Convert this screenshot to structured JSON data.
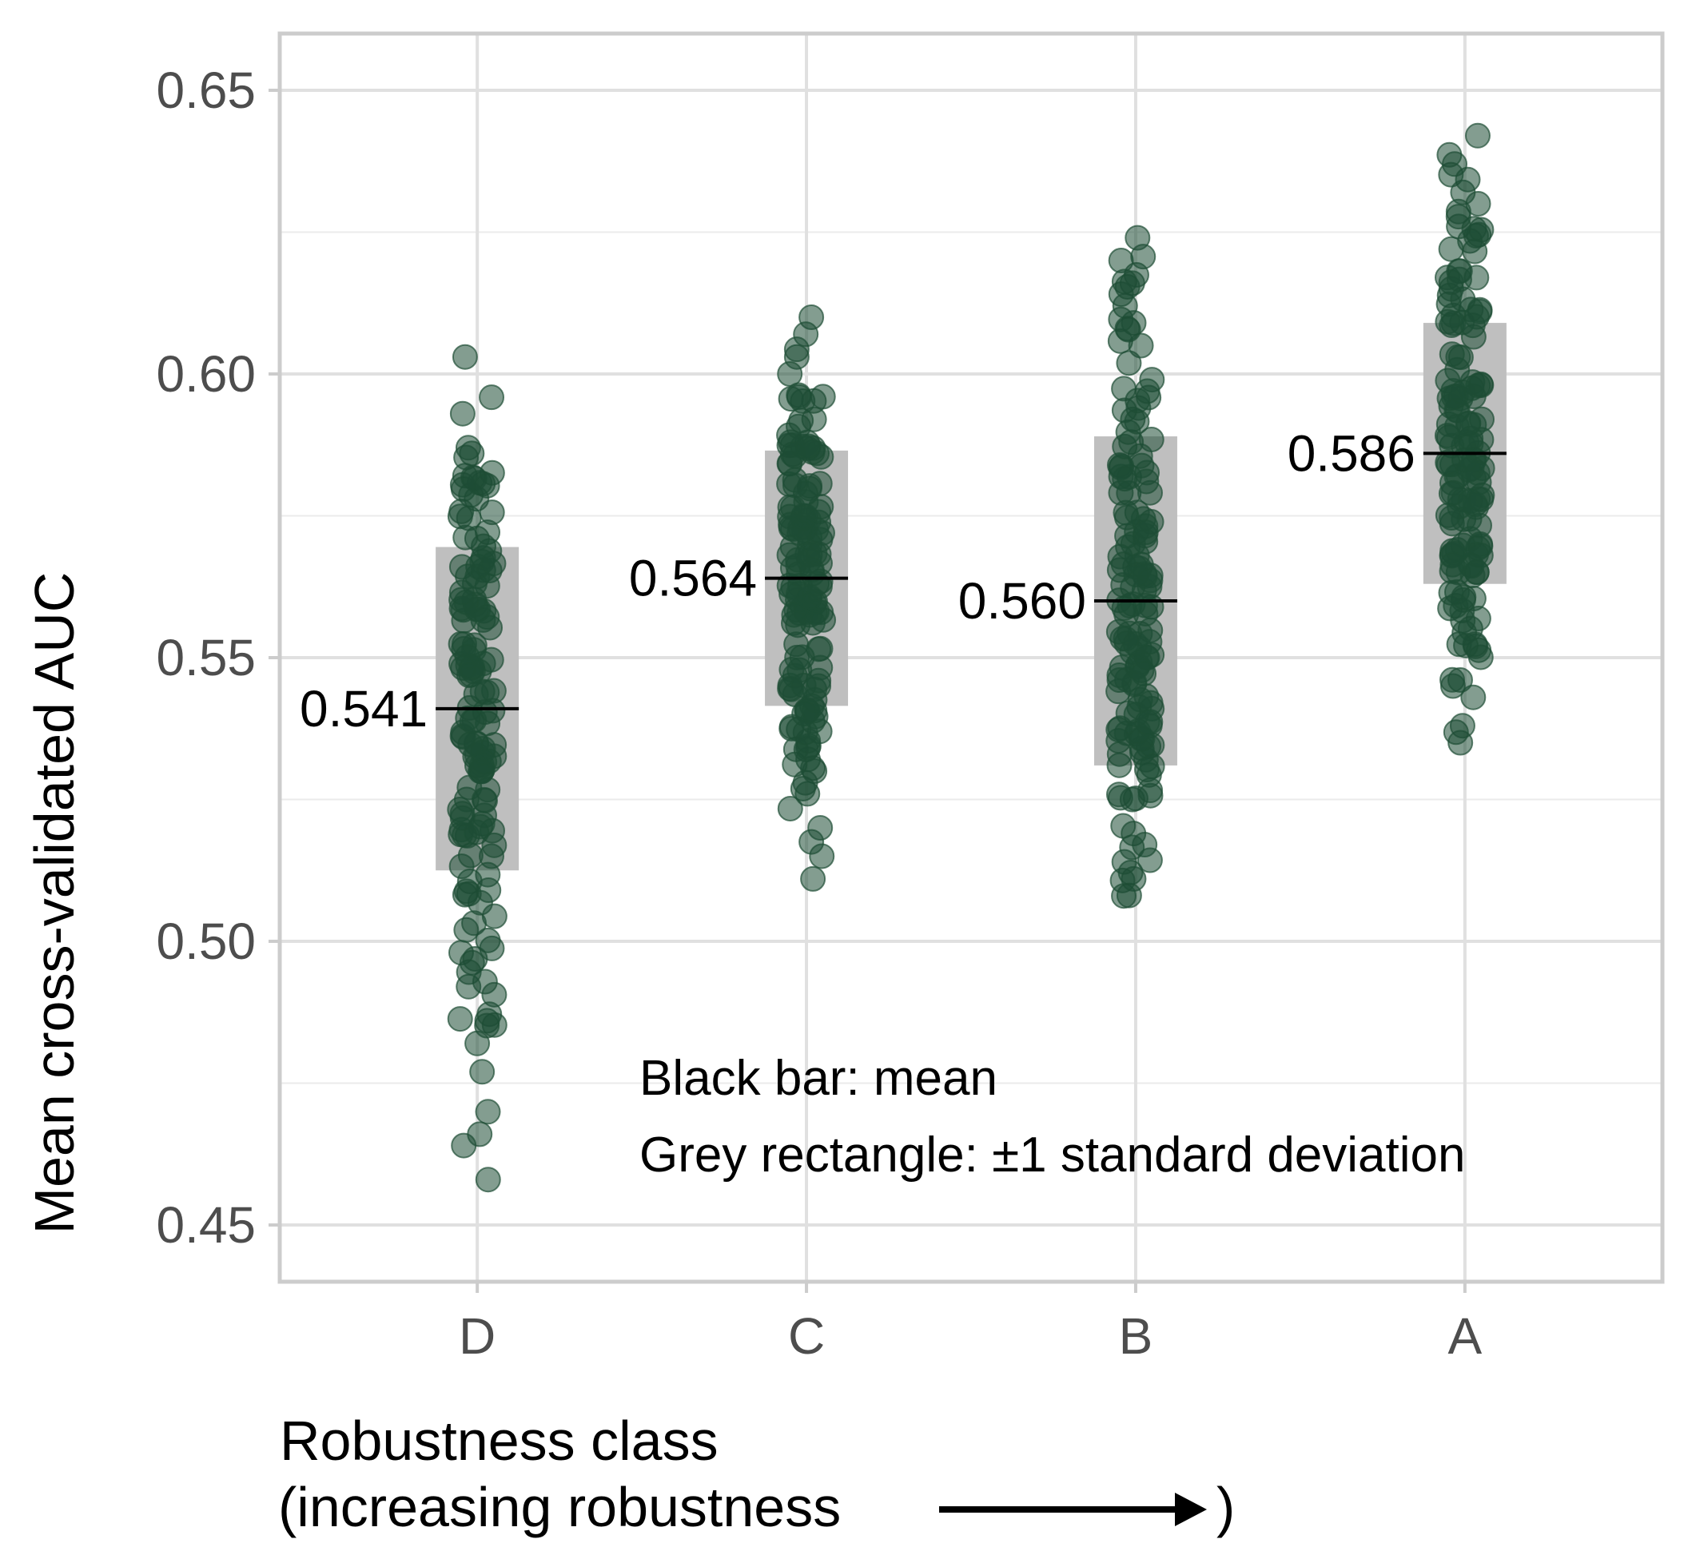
{
  "chart_data": {
    "type": "scatter",
    "title": "",
    "xlabel_lines": [
      "Robustness class",
      "(increasing robustness"
    ],
    "xlabel_close": ")",
    "ylabel": "Mean cross-validated AUC",
    "ylim": [
      0.44,
      0.66
    ],
    "y_ticks": [
      0.45,
      0.5,
      0.55,
      0.6,
      0.65
    ],
    "y_tick_labels": [
      "0.45",
      "0.50",
      "0.55",
      "0.60",
      "0.65"
    ],
    "categories": [
      "D",
      "C",
      "B",
      "A"
    ],
    "grid": true,
    "point_color": "#1e4d34",
    "series": [
      {
        "category": "D",
        "mean": 0.541,
        "mean_label": "0.541",
        "sd": 0.0285,
        "min": 0.458,
        "max": 0.603,
        "n": 150,
        "highlight_values": [
          0.603,
          0.593,
          0.587,
          0.586,
          0.578,
          0.571,
          0.566,
          0.547,
          0.53,
          0.515,
          0.502,
          0.498,
          0.492,
          0.486,
          0.482,
          0.477,
          0.466,
          0.464,
          0.458
        ]
      },
      {
        "category": "C",
        "mean": 0.564,
        "mean_label": "0.564",
        "sd": 0.0225,
        "min": 0.511,
        "max": 0.61,
        "n": 150,
        "highlight_values": [
          0.61,
          0.607,
          0.603,
          0.6,
          0.596,
          0.592,
          0.586,
          0.575,
          0.558,
          0.545,
          0.537,
          0.53,
          0.526,
          0.52,
          0.511
        ]
      },
      {
        "category": "B",
        "mean": 0.56,
        "mean_label": "0.560",
        "sd": 0.029,
        "min": 0.508,
        "max": 0.624,
        "n": 150,
        "highlight_values": [
          0.624,
          0.62,
          0.616,
          0.612,
          0.609,
          0.605,
          0.599,
          0.594,
          0.588,
          0.579,
          0.566,
          0.551,
          0.541,
          0.532,
          0.525,
          0.519,
          0.514,
          0.511,
          0.508
        ]
      },
      {
        "category": "A",
        "mean": 0.586,
        "mean_label": "0.586",
        "sd": 0.023,
        "min": 0.535,
        "max": 0.642,
        "n": 150,
        "highlight_values": [
          0.642,
          0.637,
          0.632,
          0.63,
          0.626,
          0.622,
          0.617,
          0.611,
          0.603,
          0.592,
          0.578,
          0.565,
          0.552,
          0.545,
          0.543,
          0.538,
          0.535
        ]
      }
    ],
    "annotations": [
      "Black bar: mean",
      "Grey rectangle: ±1 standard deviation"
    ]
  }
}
